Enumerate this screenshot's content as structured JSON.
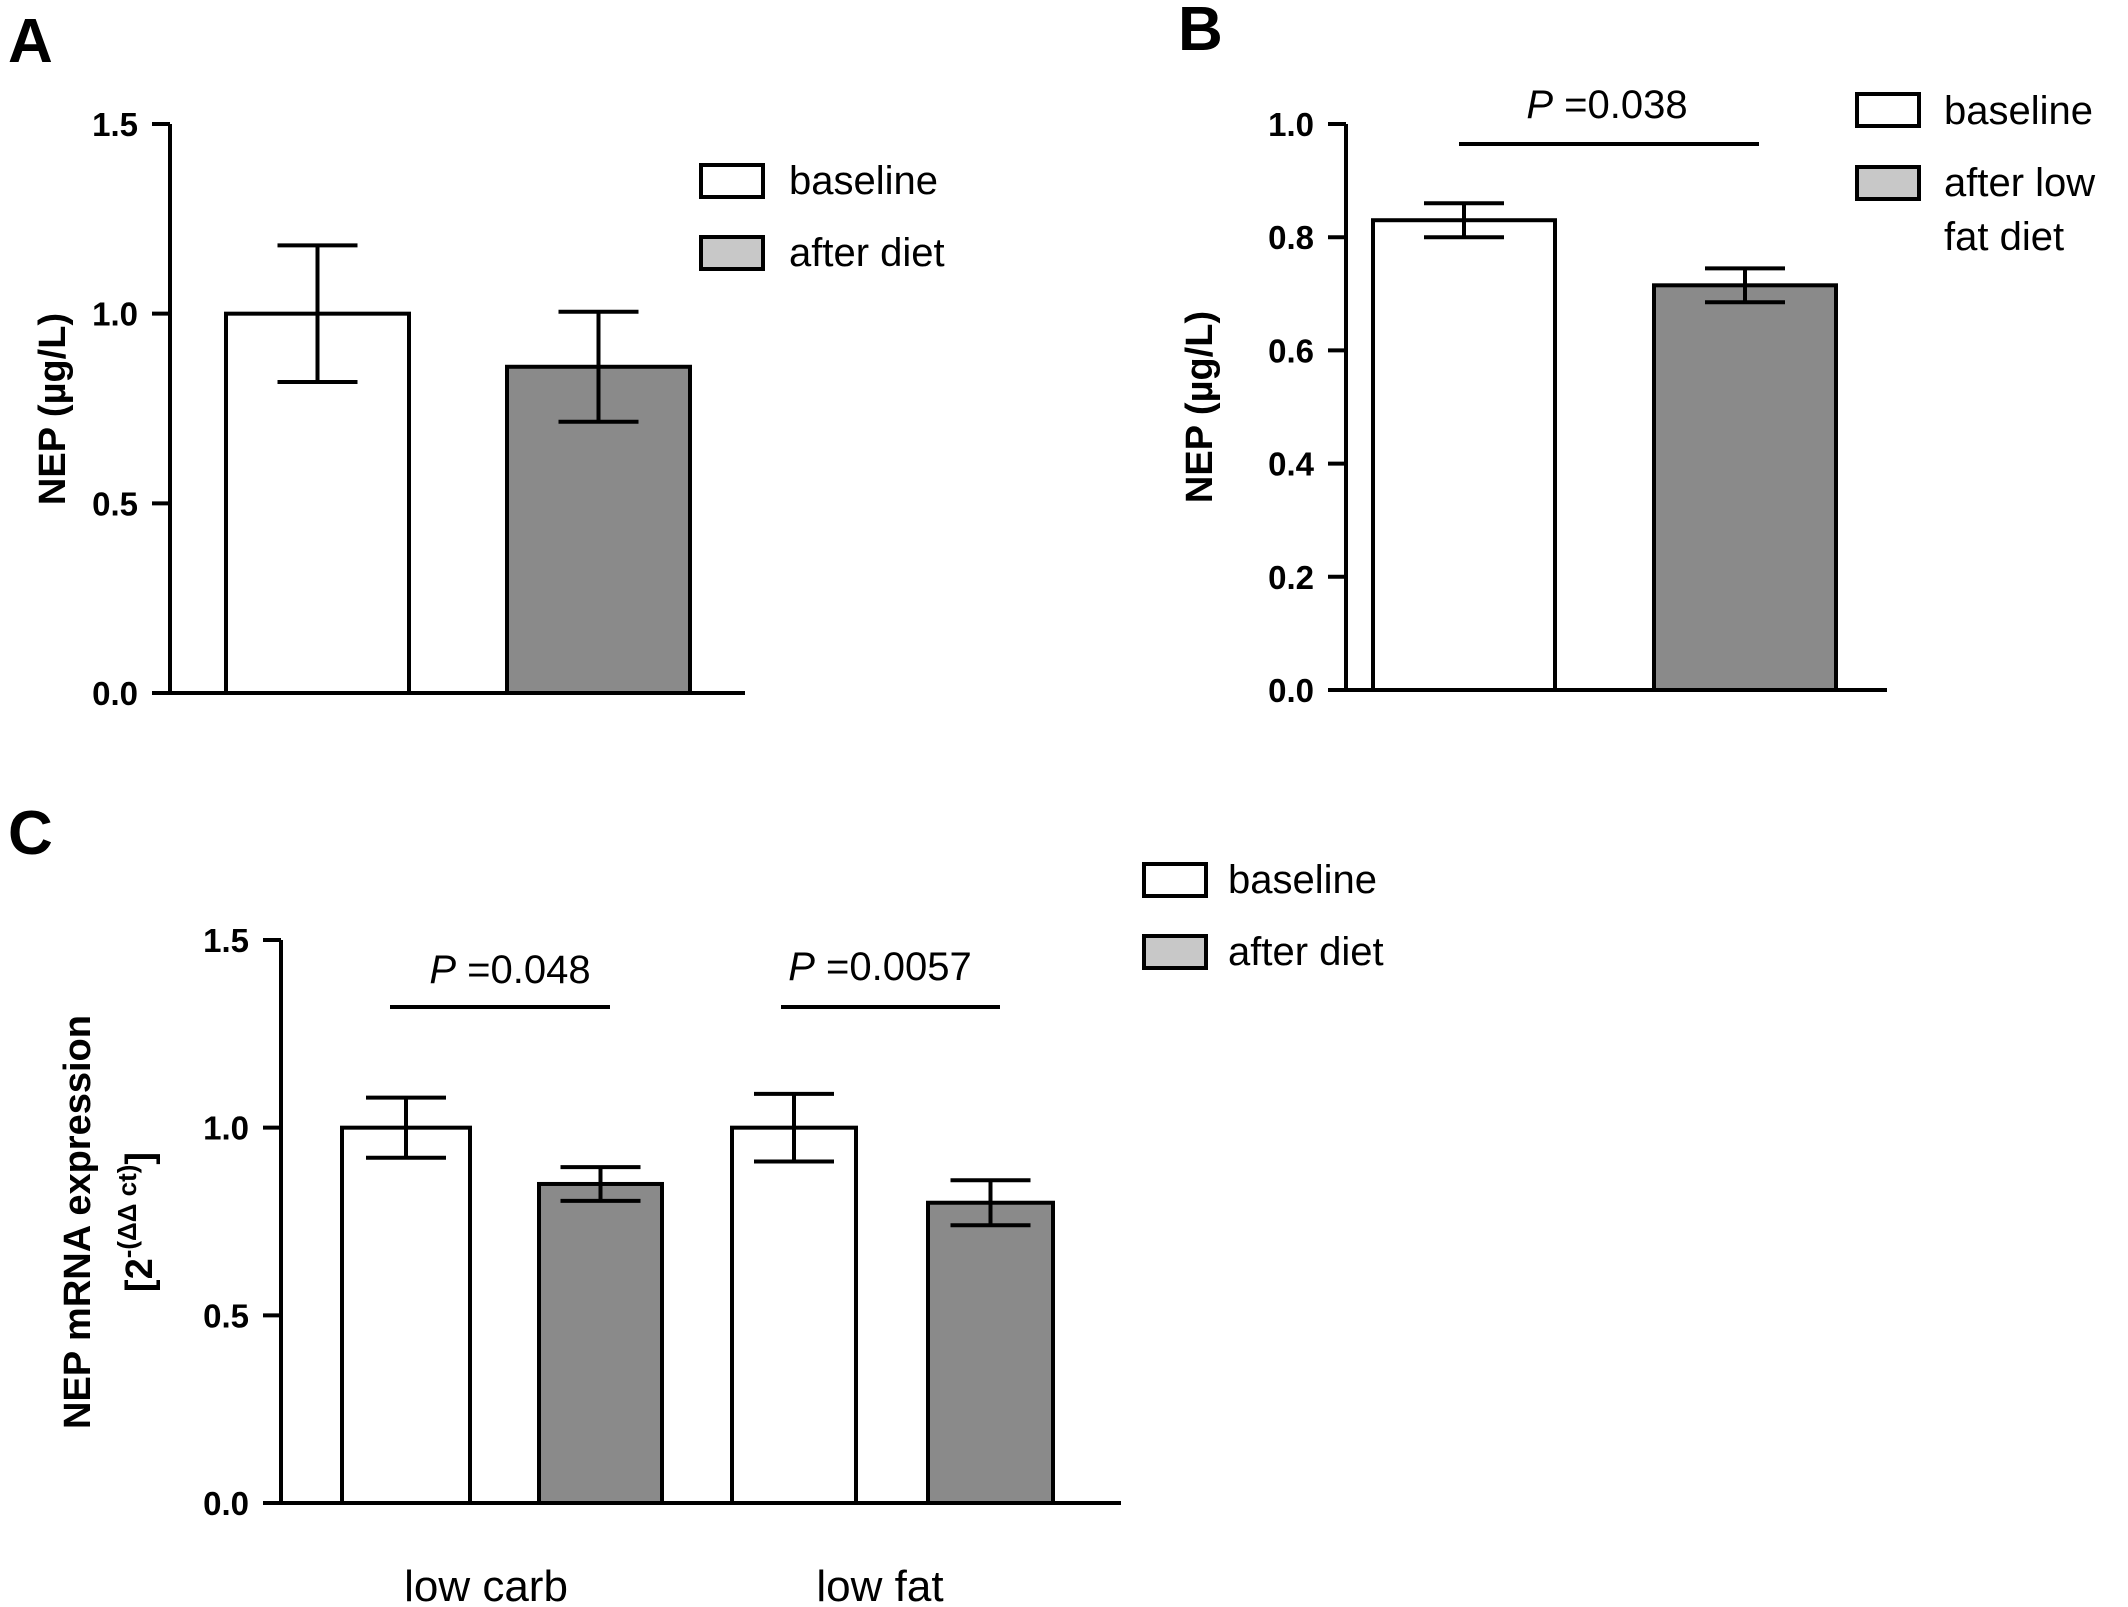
{
  "colors": {
    "baseline": "#ffffff",
    "after": "#8a8a8a",
    "legend_after": "#c8c8c8",
    "stroke": "#000000"
  },
  "chart_data": [
    {
      "panel": "A",
      "type": "bar",
      "ylabel": "NEP (µg/L)",
      "ylim": [
        0,
        1.5
      ],
      "yticks": [
        "0.0",
        "0.5",
        "1.0",
        "1.5"
      ],
      "legend": [
        "baseline",
        "after diet"
      ],
      "legend_position": "top-right",
      "series": [
        {
          "name": "baseline",
          "values": [
            1.0
          ],
          "err": [
            0.18
          ]
        },
        {
          "name": "after diet",
          "values": [
            0.86
          ],
          "err": [
            0.145
          ]
        }
      ],
      "categories": [
        ""
      ]
    },
    {
      "panel": "B",
      "type": "bar",
      "ylabel": "NEP (µg/L)",
      "ylim": [
        0,
        1.0
      ],
      "yticks": [
        "0.0",
        "0.2",
        "0.4",
        "0.6",
        "0.8",
        "1.0"
      ],
      "legend": [
        "baseline",
        "after low",
        "fat diet"
      ],
      "legend_position": "top-right",
      "series": [
        {
          "name": "baseline",
          "values": [
            0.83
          ],
          "err": [
            0.03
          ]
        },
        {
          "name": "after low fat diet",
          "values": [
            0.715
          ],
          "err": [
            0.03
          ]
        }
      ],
      "categories": [
        ""
      ],
      "annotations": [
        {
          "p_label": "P",
          "p_value": " =0.038"
        }
      ]
    },
    {
      "panel": "C",
      "type": "bar",
      "ylabel_line1": "NEP mRNA expression",
      "ylabel_line2_base": "[2",
      "ylabel_line2_sup": "-(ΔΔ ct)",
      "ylabel_line2_end": "]",
      "ylim": [
        0,
        1.5
      ],
      "yticks": [
        "0.0",
        "0.5",
        "1.0",
        "1.5"
      ],
      "legend": [
        "baseline",
        "after diet"
      ],
      "legend_position": "top-right",
      "categories": [
        "low carb",
        "low fat"
      ],
      "series": [
        {
          "name": "baseline",
          "values": [
            1.0,
            1.0
          ],
          "err": [
            0.08,
            0.09
          ]
        },
        {
          "name": "after diet",
          "values": [
            0.85,
            0.8
          ],
          "err": [
            0.045,
            0.06
          ]
        }
      ],
      "annotations": [
        {
          "p_label": "P",
          "p_value": " =0.048"
        },
        {
          "p_label": "P",
          "p_value": " =0.0057"
        }
      ]
    }
  ]
}
